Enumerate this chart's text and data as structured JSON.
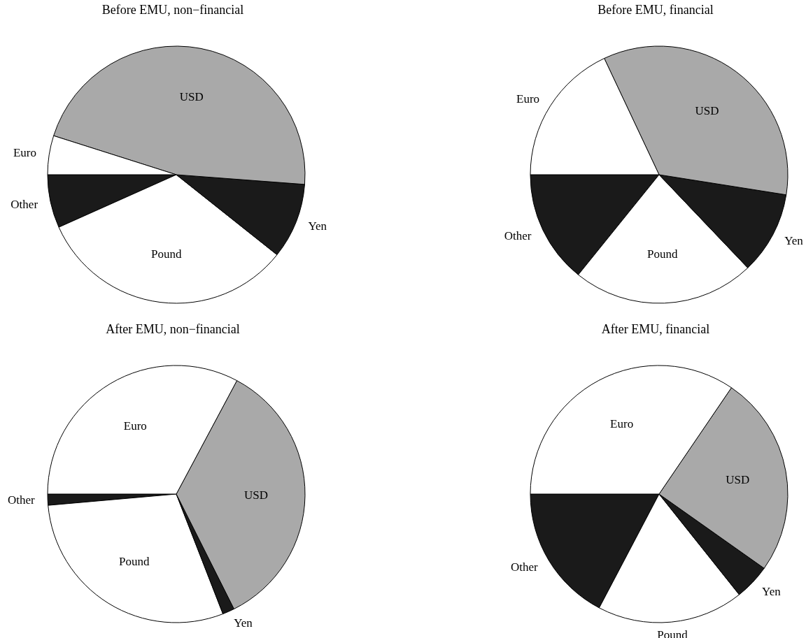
{
  "chart_data": [
    {
      "type": "pie",
      "title": "Before EMU, non−financial",
      "categories": [
        "Other",
        "Pound",
        "Yen",
        "USD",
        "Euro"
      ],
      "values": [
        6.7,
        32.6,
        9.5,
        46.3,
        4.9
      ],
      "colors": [
        "#1a1a1a",
        "#ffffff",
        "#1a1a1a",
        "#a9a9a9",
        "#ffffff"
      ]
    },
    {
      "type": "pie",
      "title": "Before EMU, financial",
      "categories": [
        "Other",
        "Pound",
        "Yen",
        "USD",
        "Euro"
      ],
      "values": [
        14.2,
        22.9,
        10.4,
        34.5,
        18.0
      ],
      "colors": [
        "#1a1a1a",
        "#ffffff",
        "#1a1a1a",
        "#a9a9a9",
        "#ffffff"
      ]
    },
    {
      "type": "pie",
      "title": "After EMU, non−financial",
      "categories": [
        "Other",
        "Pound",
        "Yen",
        "USD",
        "Euro"
      ],
      "values": [
        1.4,
        29.5,
        1.5,
        34.8,
        32.8
      ],
      "colors": [
        "#1a1a1a",
        "#ffffff",
        "#1a1a1a",
        "#a9a9a9",
        "#ffffff"
      ]
    },
    {
      "type": "pie",
      "title": "After EMU, financial",
      "categories": [
        "Other",
        "Pound",
        "Yen",
        "USD",
        "Euro"
      ],
      "values": [
        17.3,
        18.4,
        4.5,
        25.3,
        34.5
      ],
      "colors": [
        "#1a1a1a",
        "#ffffff",
        "#1a1a1a",
        "#a9a9a9",
        "#ffffff"
      ]
    }
  ]
}
